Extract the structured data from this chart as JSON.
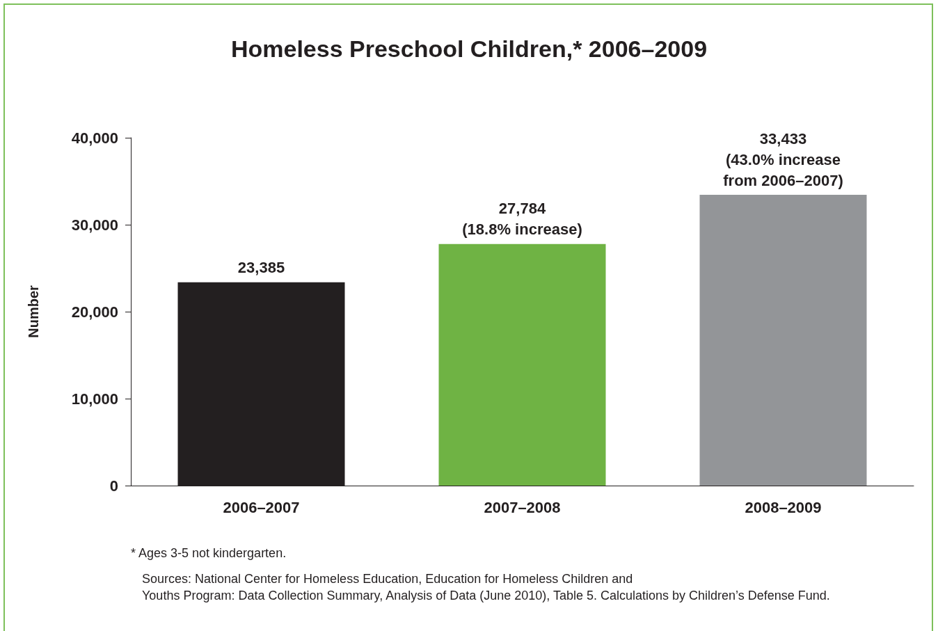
{
  "chart_data": {
    "type": "bar",
    "title": "Homeless Preschool Children,* 2006–2009",
    "ylabel": "Number",
    "categories": [
      "2006–2007",
      "2007–2008",
      "2008–2009"
    ],
    "values": [
      23385,
      27784,
      33433
    ],
    "colors": [
      "#231f20",
      "#6fb344",
      "#939598"
    ],
    "value_labels": [
      "23,385",
      "27,784\n(18.8% increase)",
      "33,433\n(43.0% increase\nfrom 2006–2007)"
    ],
    "ylim": [
      0,
      40000
    ],
    "yticks": [
      0,
      {
        "value": 10000,
        "label": "10,000"
      },
      {
        "value": 20000,
        "label": "20,000"
      },
      {
        "value": 30000,
        "label": "30,000"
      },
      {
        "value": 40000,
        "label": "40,000"
      }
    ],
    "grid": false,
    "annotations": [
      "* Ages 3-5 not kindergarten.",
      "Sources: National Center for Homeless Education, Education for Homeless Children and\nYouths Program: Data Collection Summary, Analysis of Data (June 2010), Table 5. Calculations by Children’s Defense Fund."
    ]
  }
}
